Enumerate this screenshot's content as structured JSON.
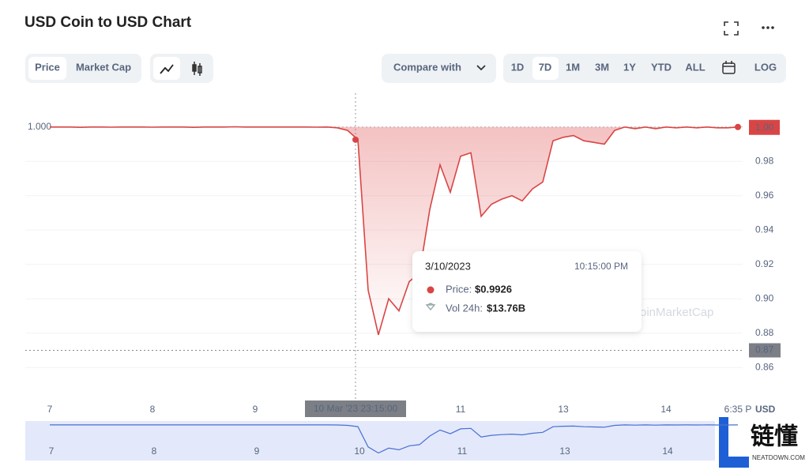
{
  "header": {
    "title": "USD Coin to USD Chart"
  },
  "toolbar": {
    "tabs": [
      "Price",
      "Market Cap"
    ],
    "compare": "Compare with",
    "ranges": [
      "1D",
      "7D",
      "1M",
      "3M",
      "1Y",
      "YTD",
      "ALL"
    ],
    "log": "LOG"
  },
  "chart_data": {
    "type": "line",
    "categories": [
      "7",
      null,
      null,
      null,
      null,
      null,
      null,
      null,
      null,
      null,
      "8",
      null,
      null,
      null,
      null,
      null,
      null,
      null,
      null,
      null,
      "9",
      null,
      null,
      null,
      null,
      null,
      null,
      null,
      null,
      null,
      null,
      null,
      null,
      null,
      null,
      null,
      null,
      null,
      null,
      null,
      "11",
      null,
      null,
      null,
      null,
      null,
      null,
      null,
      null,
      null,
      "13",
      null,
      null,
      null,
      null,
      null,
      null,
      null,
      null,
      null,
      "14",
      null,
      null,
      null,
      null,
      null,
      null,
      "6:35 P"
    ],
    "values": [
      1.0,
      1.0,
      1.0,
      0.9998,
      1.0,
      1.0,
      0.9999,
      1.0,
      1.0,
      1.0,
      0.9999,
      1.0,
      1.0,
      1.0,
      0.9998,
      1.0,
      1.0,
      1.0,
      1.0001,
      1.0,
      1.0,
      1.0,
      1.0,
      1.0,
      1.0,
      1.0,
      0.9999,
      1.0,
      0.9995,
      0.998,
      0.9926,
      0.905,
      0.879,
      0.9,
      0.893,
      0.91,
      0.915,
      0.952,
      0.978,
      0.962,
      0.983,
      0.985,
      0.948,
      0.955,
      0.958,
      0.96,
      0.957,
      0.964,
      0.968,
      0.992,
      0.994,
      0.995,
      0.992,
      0.991,
      0.99,
      0.998,
      1.0,
      0.999,
      1.0,
      0.999,
      1.0,
      0.9995,
      1.0,
      0.9995,
      1.0,
      0.9995,
      0.9995,
      1.0
    ],
    "color": "#d94545",
    "ylim": [
      0.85,
      1.02
    ],
    "yticks": [
      0.86,
      0.88,
      {
        "value": 0.9,
        "label": "0.90"
      },
      0.92,
      0.94,
      0.96,
      0.98
    ],
    "grid": true,
    "axis_unit": "USD",
    "reference": {
      "value": 1,
      "label": "1.000"
    },
    "last_price": {
      "value": 1,
      "label": "1.00"
    },
    "low_line": {
      "value": 0.87,
      "label": "0.87"
    },
    "crosshair_label": "10 Mar '23  23:15:00"
  },
  "tooltip": {
    "date": "3/10/2023",
    "time": "10:15:00 PM",
    "price_label": "Price:",
    "price": "$0.9926",
    "volume_label": "Vol 24h:",
    "volume": "$13.76B"
  },
  "navigator": {
    "labels": [
      "7",
      "8",
      "9",
      "10",
      "11",
      "13",
      "14"
    ],
    "color": "#4a6fd1"
  },
  "watermark": "oinMarketCap",
  "logo": {
    "name": "链懂",
    "site": "NEATDOWN.COM"
  }
}
